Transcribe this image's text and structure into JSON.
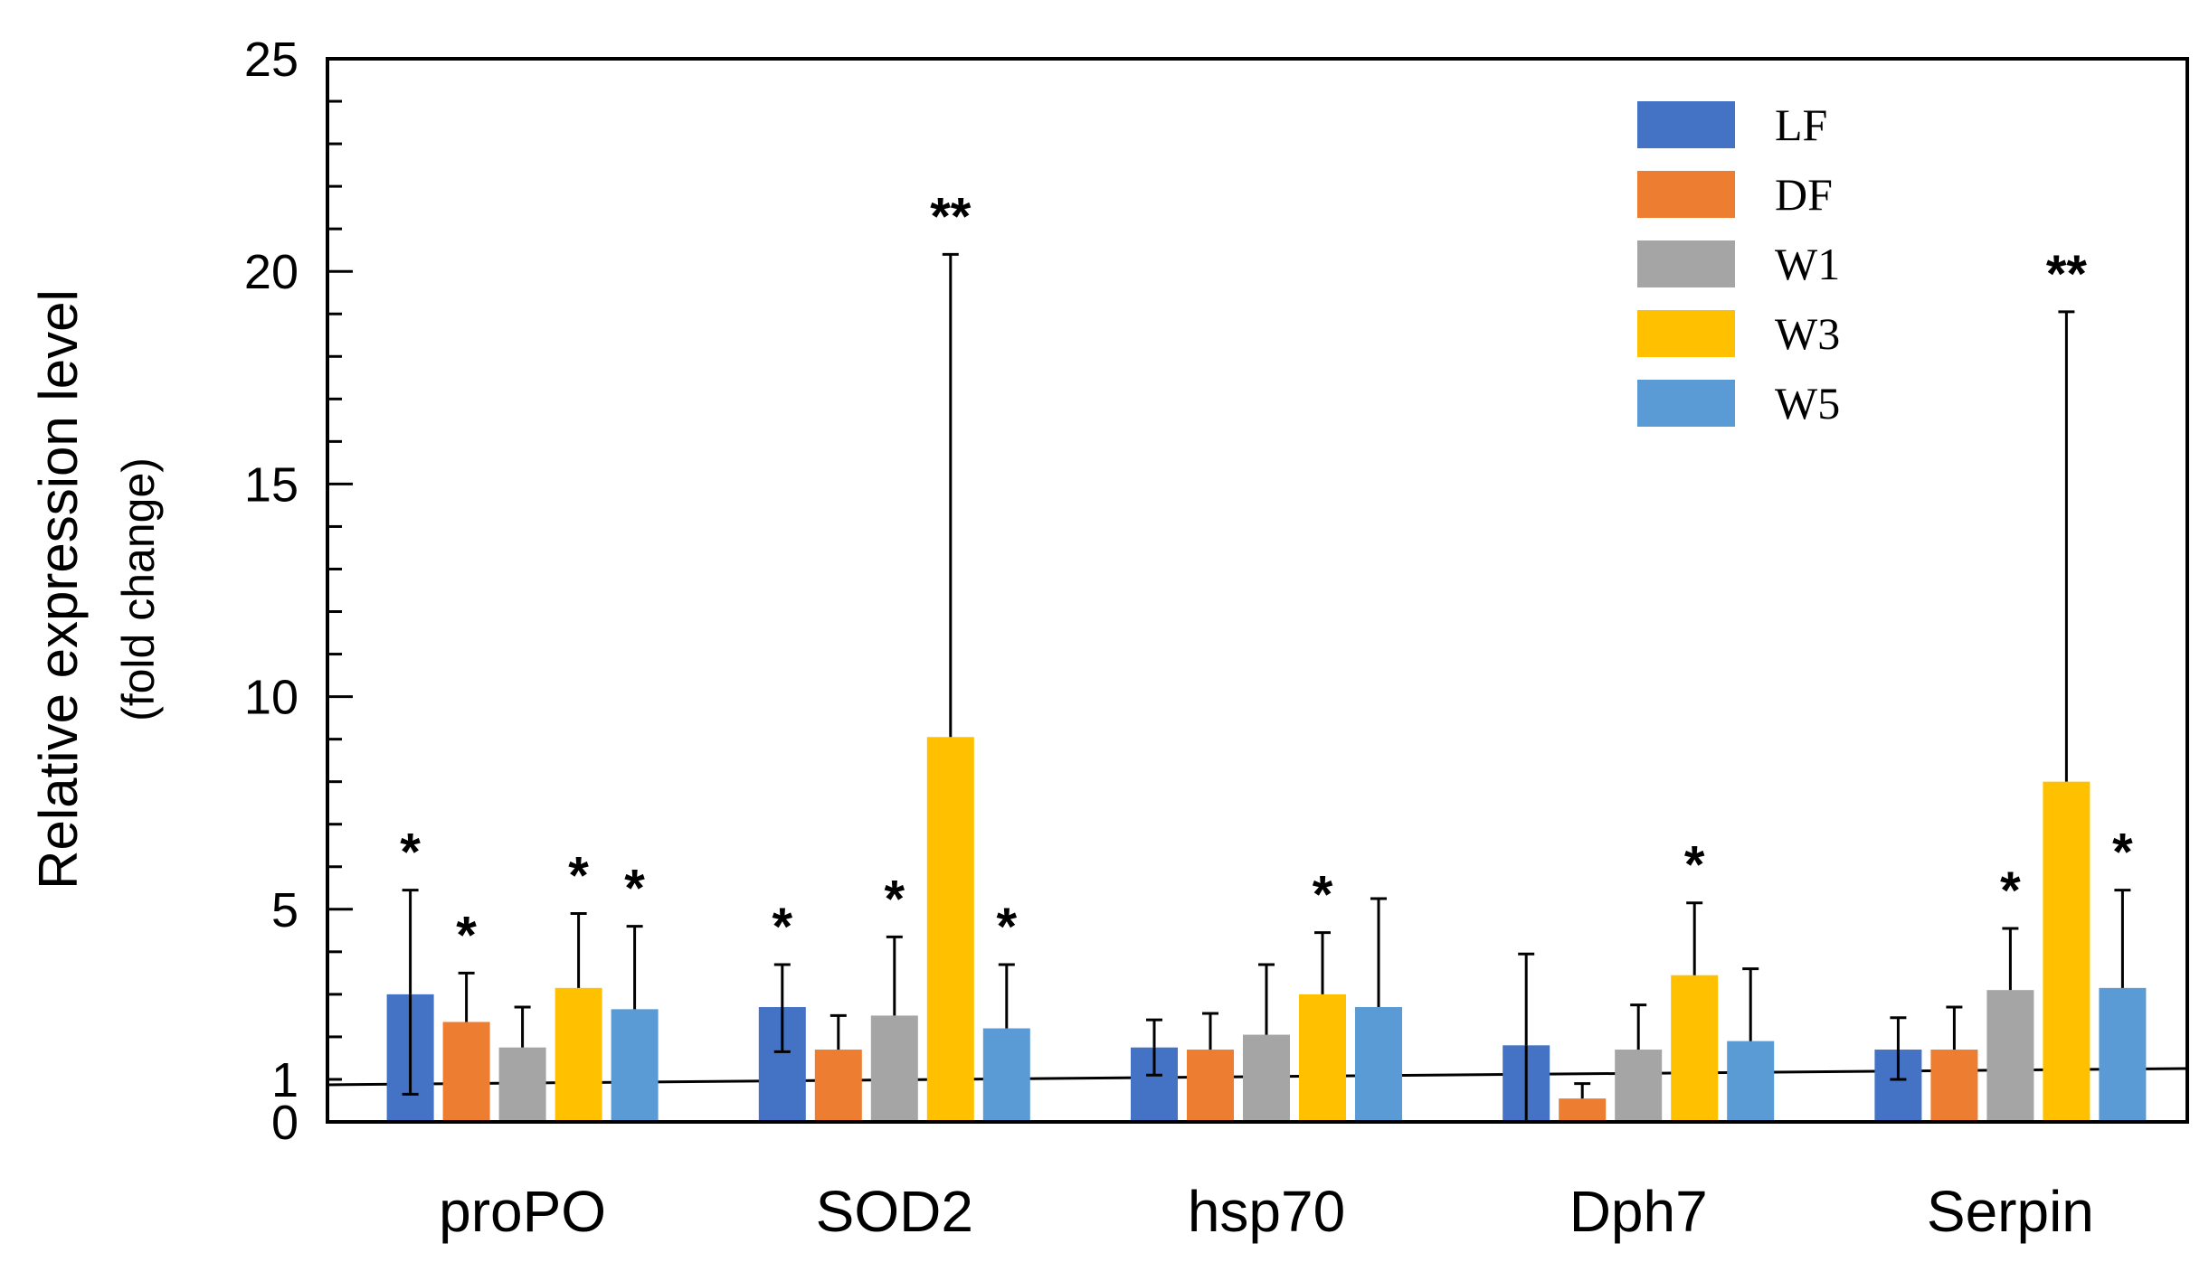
{
  "chart_data": {
    "type": "bar",
    "title": "",
    "xlabel": "",
    "ylabel": "Relative expression level",
    "ylabel_sub": "(fold change)",
    "ylim": [
      0,
      25
    ],
    "yticks": [
      0,
      1,
      5,
      10,
      15,
      20,
      25
    ],
    "reference_line": 1,
    "categories": [
      "proPO",
      "SOD2",
      "hsp70",
      "Dph7",
      "Serpin"
    ],
    "legend_position": "top-right",
    "series": [
      {
        "name": "LF",
        "color": "#4472C4",
        "values": [
          3.0,
          2.7,
          1.75,
          1.8,
          1.7
        ],
        "errors": [
          2.45,
          1.0,
          0.65,
          2.15,
          0.75
        ],
        "error_lower": [
          2.35,
          1.05,
          0.65,
          1.8,
          0.7
        ],
        "sig": [
          "*",
          "*",
          "",
          "",
          ""
        ]
      },
      {
        "name": "DF",
        "color": "#ED7D31",
        "values": [
          2.35,
          1.7,
          1.7,
          0.55,
          1.7
        ],
        "errors": [
          1.15,
          0.8,
          0.85,
          0.35,
          1.0
        ],
        "sig": [
          "*",
          "",
          "",
          "",
          ""
        ]
      },
      {
        "name": "W1",
        "color": "#A5A5A5",
        "values": [
          1.75,
          2.5,
          2.05,
          1.7,
          3.1
        ],
        "errors": [
          0.95,
          1.85,
          1.65,
          1.05,
          1.45
        ],
        "sig": [
          "",
          "*",
          "",
          "",
          "*"
        ]
      },
      {
        "name": "W3",
        "color": "#FFC000",
        "values": [
          3.15,
          9.05,
          3.0,
          3.45,
          8.0
        ],
        "errors": [
          1.75,
          11.35,
          1.45,
          1.7,
          11.05
        ],
        "sig": [
          "*",
          "**",
          "*",
          "*",
          "**"
        ]
      },
      {
        "name": "W5",
        "color": "#5B9BD5",
        "values": [
          2.65,
          2.2,
          2.7,
          1.9,
          3.15
        ],
        "errors": [
          1.95,
          1.5,
          2.55,
          1.7,
          2.3
        ],
        "sig": [
          "*",
          "*",
          "",
          "",
          "*"
        ]
      }
    ]
  }
}
